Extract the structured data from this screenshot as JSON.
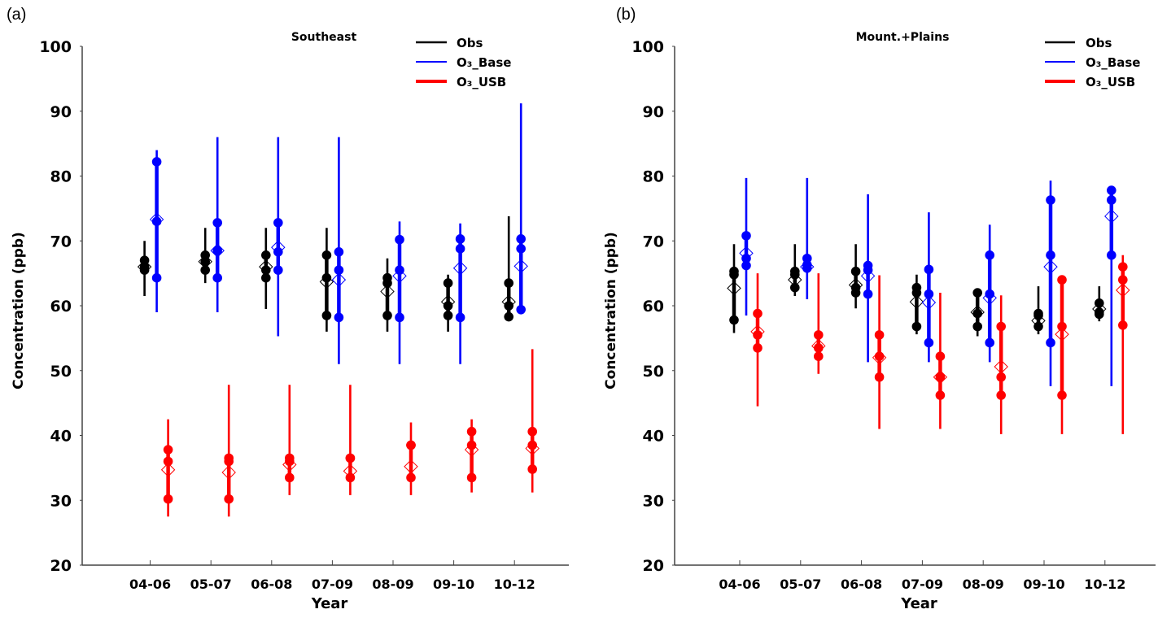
{
  "chart_data": [
    {
      "panel_label": "(a)",
      "type": "scatter",
      "title": "Southeast",
      "xlabel": "Year",
      "ylabel": "Concentration (ppb)",
      "ylim": [
        20,
        100
      ],
      "yticks": [
        20,
        30,
        40,
        50,
        60,
        70,
        80,
        90,
        100
      ],
      "categories": [
        "04-06",
        "05-07",
        "06-08",
        "07-09",
        "08-09",
        "09-10",
        "10-12"
      ],
      "legend_position": "top-right",
      "series": [
        {
          "name": "Obs",
          "color": "#000000",
          "groups": [
            {
              "whisker": [
                61.5,
                70
              ],
              "points": [
                65.5,
                66,
                67
              ],
              "mean": 66
            },
            {
              "whisker": [
                63.5,
                72
              ],
              "points": [
                65.5,
                66.8,
                67.8
              ],
              "mean": 66.8
            },
            {
              "whisker": [
                59.5,
                72
              ],
              "points": [
                64.3,
                65.5,
                67.8
              ],
              "mean": 66
            },
            {
              "whisker": [
                56,
                72
              ],
              "points": [
                58.5,
                64.3,
                67.8
              ],
              "mean": 63.7
            },
            {
              "whisker": [
                56,
                67.3
              ],
              "points": [
                58.5,
                63.5,
                64.3
              ],
              "mean": 62.2
            },
            {
              "whisker": [
                56,
                64.8
              ],
              "points": [
                58.5,
                60,
                63.5
              ],
              "mean": 60.6
            },
            {
              "whisker": [
                58,
                73.8
              ],
              "points": [
                58.3,
                60,
                63.5
              ],
              "mean": 60.6
            }
          ]
        },
        {
          "name": "O₃_Base",
          "color": "#0000ff",
          "groups": [
            {
              "whisker": [
                59,
                84
              ],
              "points": [
                64.3,
                73,
                82.2
              ],
              "mean": 73.3
            },
            {
              "whisker": [
                59,
                86
              ],
              "points": [
                64.3,
                68.5,
                72.8
              ],
              "mean": 68.5
            },
            {
              "whisker": [
                55.3,
                86
              ],
              "points": [
                65.5,
                68.3,
                72.8
              ],
              "mean": 69
            },
            {
              "whisker": [
                51,
                86
              ],
              "points": [
                58.2,
                65.5,
                68.3
              ],
              "mean": 64
            },
            {
              "whisker": [
                51,
                73
              ],
              "points": [
                58.2,
                65.5,
                70.2
              ],
              "mean": 64.6
            },
            {
              "whisker": [
                51,
                72.7
              ],
              "points": [
                58.2,
                68.8,
                70.3
              ],
              "mean": 65.8
            },
            {
              "whisker": [
                59.3,
                91.2
              ],
              "points": [
                59.4,
                68.8,
                70.3
              ],
              "mean": 66.1
            }
          ]
        },
        {
          "name": "O₃_USB",
          "color": "#ff0000",
          "groups": [
            {
              "whisker": [
                27.5,
                42.5
              ],
              "points": [
                30.2,
                36,
                37.8
              ],
              "mean": 34.7
            },
            {
              "whisker": [
                27.5,
                47.8
              ],
              "points": [
                30.2,
                36,
                36.5
              ],
              "mean": 34.3
            },
            {
              "whisker": [
                30.8,
                47.8
              ],
              "points": [
                33.5,
                36,
                36.5
              ],
              "mean": 35.5
            },
            {
              "whisker": [
                30.8,
                47.8
              ],
              "points": [
                33.5,
                36.5,
                36.5
              ],
              "mean": 34.5
            },
            {
              "whisker": [
                30.8,
                42
              ],
              "points": [
                33.5,
                38.5,
                38.5
              ],
              "mean": 35.2
            },
            {
              "whisker": [
                31.2,
                42.5
              ],
              "points": [
                33.5,
                38.5,
                40.6
              ],
              "mean": 37.8
            },
            {
              "whisker": [
                31.2,
                53.3
              ],
              "points": [
                34.8,
                38.5,
                40.6
              ],
              "mean": 38
            }
          ]
        }
      ]
    },
    {
      "panel_label": "(b)",
      "type": "scatter",
      "title": "Mount.+Plains",
      "xlabel": "Year",
      "ylabel": "Concentration (ppb)",
      "ylim": [
        20,
        100
      ],
      "yticks": [
        20,
        30,
        40,
        50,
        60,
        70,
        80,
        90,
        100
      ],
      "categories": [
        "04-06",
        "05-07",
        "06-08",
        "07-09",
        "08-09",
        "09-10",
        "10-12"
      ],
      "legend_position": "top-right",
      "series": [
        {
          "name": "Obs",
          "color": "#000000",
          "groups": [
            {
              "whisker": [
                55.8,
                69.5
              ],
              "points": [
                57.8,
                64.8,
                65.3
              ],
              "mean": 62.7
            },
            {
              "whisker": [
                61.5,
                69.5
              ],
              "points": [
                62.8,
                64.8,
                65.3
              ],
              "mean": 64
            },
            {
              "whisker": [
                59.6,
                69.5
              ],
              "points": [
                62,
                62.8,
                65.3
              ],
              "mean": 63.2
            },
            {
              "whisker": [
                55.6,
                64.8
              ],
              "points": [
                56.8,
                62,
                62.8
              ],
              "mean": 60.6
            },
            {
              "whisker": [
                55.3,
                62.4
              ],
              "points": [
                56.8,
                58.8,
                62
              ],
              "mean": 59
            },
            {
              "whisker": [
                55.6,
                63
              ],
              "points": [
                56.8,
                58.5,
                58.8
              ],
              "mean": 57.7
            },
            {
              "whisker": [
                57.6,
                63
              ],
              "points": [
                58.7,
                59,
                60.4
              ],
              "mean": 59.5
            }
          ]
        },
        {
          "name": "O₃_Base",
          "color": "#0000ff",
          "groups": [
            {
              "whisker": [
                58.5,
                79.7
              ],
              "points": [
                66.2,
                67.3,
                70.8
              ],
              "mean": 68.1
            },
            {
              "whisker": [
                61,
                79.7
              ],
              "points": [
                65.8,
                66.3,
                67.3
              ],
              "mean": 66
            },
            {
              "whisker": [
                51.3,
                77.2
              ],
              "points": [
                61.8,
                65.5,
                66.2
              ],
              "mean": 64.6
            },
            {
              "whisker": [
                51.3,
                74.4
              ],
              "points": [
                54.3,
                61.8,
                65.6
              ],
              "mean": 60.5
            },
            {
              "whisker": [
                51.3,
                72.5
              ],
              "points": [
                54.3,
                61.8,
                67.8
              ],
              "mean": 61.2
            },
            {
              "whisker": [
                47.6,
                79.3
              ],
              "points": [
                54.3,
                67.8,
                76.3
              ],
              "mean": 66
            },
            {
              "whisker": [
                47.6,
                78.3
              ],
              "points": [
                67.8,
                76.3,
                77.8
              ],
              "mean": 73.8
            }
          ]
        },
        {
          "name": "O₃_USB",
          "color": "#ff0000",
          "groups": [
            {
              "whisker": [
                44.5,
                65
              ],
              "points": [
                53.5,
                55.5,
                58.8
              ],
              "mean": 56
            },
            {
              "whisker": [
                49.5,
                65
              ],
              "points": [
                52.2,
                53.5,
                55.5
              ],
              "mean": 53.8
            },
            {
              "whisker": [
                41,
                64.7
              ],
              "points": [
                49,
                52.2,
                55.5
              ],
              "mean": 52
            },
            {
              "whisker": [
                41,
                62
              ],
              "points": [
                46.2,
                49,
                52.2
              ],
              "mean": 49
            },
            {
              "whisker": [
                40.2,
                61.6
              ],
              "points": [
                46.2,
                49,
                56.8
              ],
              "mean": 50.6
            },
            {
              "whisker": [
                40.2,
                64.5
              ],
              "points": [
                46.2,
                56.8,
                64
              ],
              "mean": 55.6
            },
            {
              "whisker": [
                40.2,
                67.8
              ],
              "points": [
                57,
                64,
                66
              ],
              "mean": 62.4
            }
          ]
        }
      ]
    }
  ]
}
